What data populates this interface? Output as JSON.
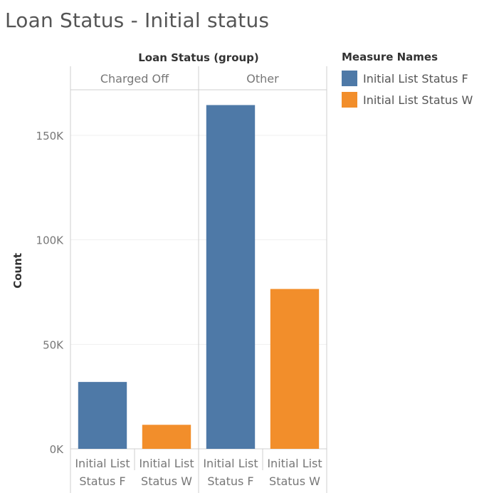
{
  "title": "Loan Status - Initial status",
  "colors": {
    "series_f": "#4e79a7",
    "series_w": "#f28e2b",
    "grid": "#efefef",
    "divider": "#cfcfcf",
    "text_muted": "#777777"
  },
  "chart_data": {
    "type": "bar",
    "title": "Loan Status - Initial status",
    "column_header": "Loan Status (group)",
    "ylabel": "Count",
    "ylim": [
      0,
      172000
    ],
    "yticks": [
      {
        "value": 0,
        "label": "0K"
      },
      {
        "value": 50000,
        "label": "50K"
      },
      {
        "value": 100000,
        "label": "100K"
      },
      {
        "value": 150000,
        "label": "150K"
      }
    ],
    "grid": true,
    "legend_title": "Measure Names",
    "legend_position": "right",
    "groups": [
      {
        "name": "Charged Off",
        "bars": [
          {
            "series": "Initial List Status F",
            "label_lines": [
              "Initial List",
              "Status F"
            ],
            "value": 32000
          },
          {
            "series": "Initial List Status W",
            "label_lines": [
              "Initial List",
              "Status W"
            ],
            "value": 11500
          }
        ]
      },
      {
        "name": "Other",
        "bars": [
          {
            "series": "Initial List Status F",
            "label_lines": [
              "Initial List",
              "Status F"
            ],
            "value": 164500
          },
          {
            "series": "Initial List Status W",
            "label_lines": [
              "Initial List",
              "Status W"
            ],
            "value": 76500
          }
        ]
      }
    ],
    "series": [
      {
        "name": "Initial List Status F",
        "color": "#4e79a7"
      },
      {
        "name": "Initial List Status W",
        "color": "#f28e2b"
      }
    ]
  }
}
